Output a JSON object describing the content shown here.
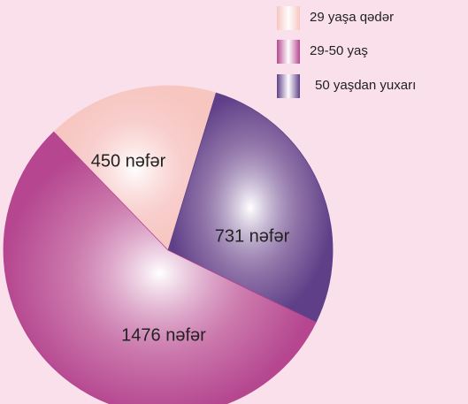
{
  "chart_data": {
    "type": "pie",
    "categories": [
      "29 yaşa qədər",
      "29-50 yaş",
      "50 yaşdan yuxarı"
    ],
    "values": [
      450,
      1476,
      731
    ],
    "value_labels": [
      "450 nəfər",
      "1476 nəfər",
      "731 nəfər"
    ],
    "colors": [
      "#f7c6c0",
      "#b5468f",
      "#5e3f88"
    ],
    "legend": "top-right"
  }
}
